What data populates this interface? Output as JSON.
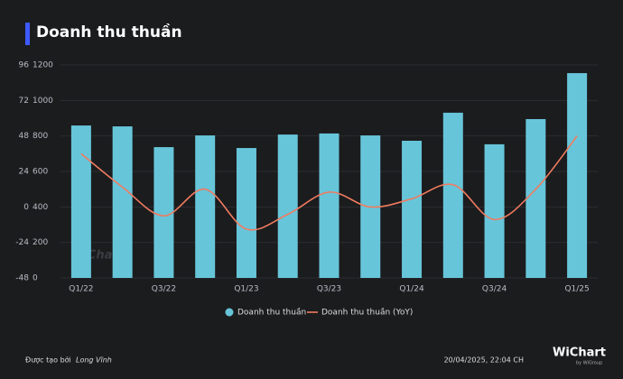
{
  "chart_data": {
    "type": "bar_line",
    "title": "Doanh thu thuần",
    "categories": [
      "Q1/22",
      null,
      "Q3/22",
      null,
      "Q1/23",
      null,
      "Q3/23",
      null,
      "Q1/24",
      null,
      "Q3/24",
      null,
      "Q1/25"
    ],
    "series": [
      {
        "name": "Doanh thu thuần",
        "type": "bar",
        "color": "#67c5d9",
        "values": [
          859,
          854,
          737,
          803,
          732,
          808,
          814,
          803,
          773,
          931,
          753,
          895,
          1154
        ]
      },
      {
        "name": "Doanh thu thuần (YoY)",
        "type": "line",
        "axis": "y2",
        "color": "#f07b5f",
        "values": [
          36,
          13.4,
          -6,
          12,
          -15,
          -5,
          10,
          0,
          5.5,
          15,
          -8.5,
          12,
          48
        ]
      }
    ],
    "ylim": [
      0,
      1200
    ],
    "yticks": [
      0,
      200,
      400,
      600,
      800,
      1000,
      1200
    ],
    "y2lim": [
      -48,
      96
    ],
    "y2ticks": [
      -48,
      -24,
      0,
      24,
      48,
      72,
      96
    ],
    "grid": true,
    "watermark": "WiChart",
    "footer": {
      "created_by_label": "Được tạo bởi",
      "author": "Long Vĩnh",
      "timestamp": "20/04/2025, 22:04 CH",
      "logo": "WiChart",
      "logo_sub": "by WiGroup"
    }
  }
}
